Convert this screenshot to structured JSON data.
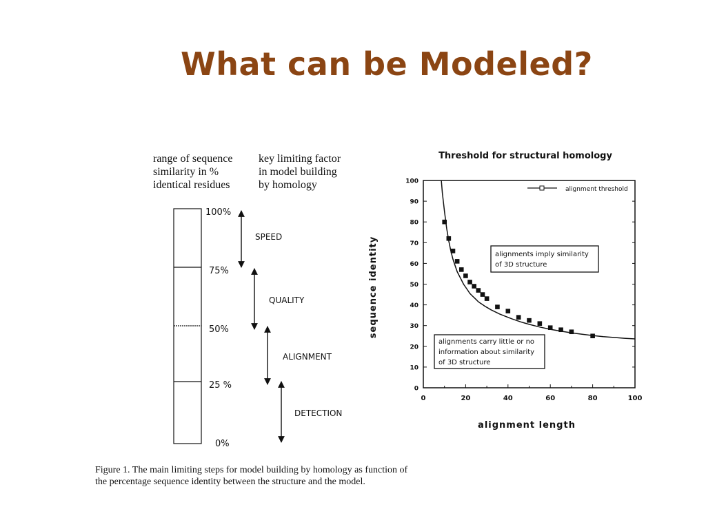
{
  "slide": {
    "title": "What can be Modeled?"
  },
  "diagram": {
    "header_left": [
      "range of sequence",
      "similarity in %",
      "identical residues"
    ],
    "header_right": [
      "key limiting factor",
      "in model building",
      "by homology"
    ],
    "levels": [
      "100%",
      "75%",
      "50%",
      "25 %",
      "0%"
    ],
    "factors": [
      "SPEED",
      "QUALITY",
      "ALIGNMENT",
      "DETECTION"
    ],
    "caption": [
      "Figure 1. The main limiting steps for model building by homology as function of",
      "the percentage sequence identity between the structure and the model."
    ]
  },
  "chart_data": {
    "type": "line",
    "title": "Threshold for structural homology",
    "xlabel": "alignment length",
    "ylabel": "sequence identity",
    "xlim": [
      0,
      100
    ],
    "ylim": [
      0,
      100
    ],
    "xticks": [
      0,
      20,
      40,
      60,
      80,
      100
    ],
    "yticks": [
      0,
      10,
      20,
      30,
      40,
      50,
      60,
      70,
      80,
      90,
      100
    ],
    "grid": false,
    "legend": {
      "position": "top-right",
      "entries": [
        "alignment threshold"
      ]
    },
    "curve": {
      "x": [
        8.5,
        9,
        10,
        11,
        12,
        13,
        14,
        15,
        16,
        17,
        18,
        19,
        20,
        21,
        22,
        23,
        24,
        25,
        26,
        27,
        28,
        29,
        30,
        32,
        34,
        36,
        38,
        40,
        42,
        44,
        46,
        48,
        50,
        55,
        60,
        65,
        70,
        75,
        80,
        85,
        90,
        95,
        100
      ],
      "y": [
        100,
        94,
        85,
        77,
        71,
        66,
        62,
        59,
        56,
        54,
        52,
        50,
        48.5,
        47,
        45.5,
        44.5,
        43.5,
        42.5,
        41.5,
        40.8,
        40.1,
        39.4,
        38.8,
        37.6,
        36.6,
        35.6,
        34.8,
        34,
        33.2,
        32.5,
        31.8,
        31.2,
        30.6,
        29.3,
        28.2,
        27.3,
        26.5,
        25.8,
        25.2,
        24.7,
        24.3,
        23.9,
        23.6
      ]
    },
    "series": [
      {
        "name": "alignment threshold",
        "x": [
          10,
          12,
          14,
          16,
          18,
          20,
          22,
          24,
          26,
          28,
          30,
          35,
          40,
          45,
          50,
          55,
          60,
          65,
          70,
          80
        ],
        "y": [
          80,
          72,
          66,
          61,
          57,
          54,
          51,
          49,
          47,
          45,
          43,
          39,
          37,
          34,
          32.5,
          31,
          29,
          28,
          27,
          25
        ]
      }
    ],
    "annotations": [
      {
        "lines": [
          "alignments imply similarity",
          "of 3D structure"
        ]
      },
      {
        "lines": [
          "alignments carry little or no",
          "information about similarity",
          "of 3D structure"
        ]
      }
    ]
  }
}
